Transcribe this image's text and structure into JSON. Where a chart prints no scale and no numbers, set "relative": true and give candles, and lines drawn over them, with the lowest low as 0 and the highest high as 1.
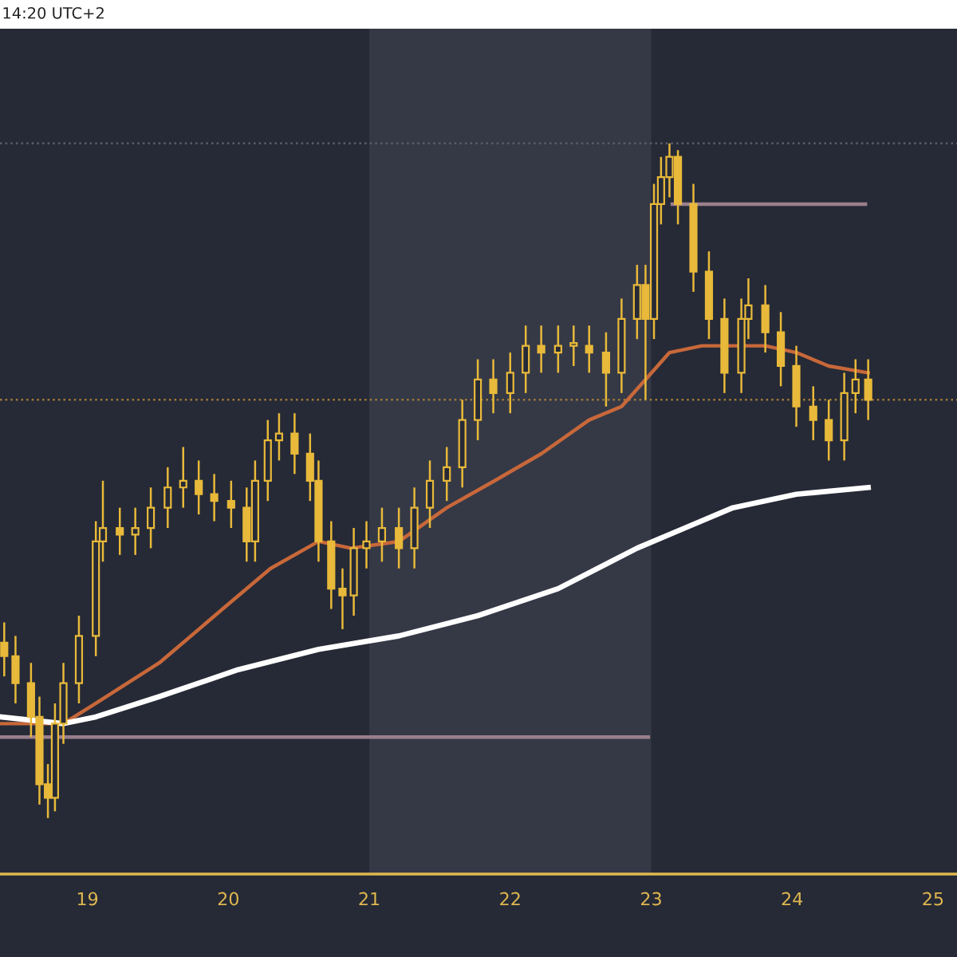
{
  "chart_data": {
    "type": "candlestick",
    "relative": true,
    "annotations": [
      "14:20 UTC+2"
    ],
    "xlim": [
      18.38,
      25.17
    ],
    "xticks": [
      19,
      20,
      21,
      22,
      23,
      24,
      25
    ],
    "grid": false,
    "legend": false,
    "bands": [
      {
        "axis": "x",
        "from": 21,
        "to": 23,
        "color": "#353946"
      }
    ],
    "ref_lines": [
      {
        "axis": "y",
        "value": 1.0,
        "color": "#5a5e6a",
        "line_style": "dotted"
      },
      {
        "axis": "y",
        "value": 0.62,
        "color": "#a07a3a",
        "line_style": "dotted"
      }
    ],
    "series": [
      {
        "color": "#e8b93a",
        "x": [
          18.41,
          18.49,
          18.6,
          18.66,
          18.72,
          18.77,
          18.83,
          18.94,
          19.06,
          19.11,
          19.23,
          19.34,
          19.45,
          19.57,
          19.68,
          19.79,
          19.9,
          20.02,
          20.13,
          20.19,
          20.28,
          20.36,
          20.47,
          20.58,
          20.64,
          20.73,
          20.81,
          20.89,
          20.98,
          21.09,
          21.21,
          21.32,
          21.43,
          21.55,
          21.66,
          21.77,
          21.88,
          22.0,
          22.11,
          22.22,
          22.34,
          22.45,
          22.56,
          22.68,
          22.79,
          22.9,
          22.96,
          23.02,
          23.07,
          23.13,
          23.19,
          23.3,
          23.41,
          23.52,
          23.64,
          23.69,
          23.81,
          23.92,
          24.03,
          24.15,
          24.26,
          24.37,
          24.45,
          24.54
        ],
        "ohlc": [
          [
            0.26,
            0.29,
            0.21,
            0.24
          ],
          [
            0.24,
            0.27,
            0.17,
            0.2
          ],
          [
            0.2,
            0.23,
            0.12,
            0.15
          ],
          [
            0.15,
            0.18,
            0.02,
            0.05
          ],
          [
            0.05,
            0.08,
            0.0,
            0.03
          ],
          [
            0.03,
            0.17,
            0.01,
            0.14
          ],
          [
            0.14,
            0.23,
            0.11,
            0.2
          ],
          [
            0.2,
            0.3,
            0.17,
            0.27
          ],
          [
            0.27,
            0.44,
            0.24,
            0.41
          ],
          [
            0.41,
            0.5,
            0.38,
            0.43
          ],
          [
            0.43,
            0.46,
            0.39,
            0.42
          ],
          [
            0.42,
            0.46,
            0.39,
            0.43
          ],
          [
            0.43,
            0.49,
            0.4,
            0.46
          ],
          [
            0.46,
            0.52,
            0.43,
            0.49
          ],
          [
            0.49,
            0.55,
            0.46,
            0.5
          ],
          [
            0.5,
            0.53,
            0.45,
            0.48
          ],
          [
            0.48,
            0.51,
            0.44,
            0.47
          ],
          [
            0.47,
            0.5,
            0.43,
            0.46
          ],
          [
            0.46,
            0.49,
            0.38,
            0.41
          ],
          [
            0.41,
            0.53,
            0.38,
            0.5
          ],
          [
            0.5,
            0.59,
            0.47,
            0.56
          ],
          [
            0.56,
            0.6,
            0.53,
            0.57
          ],
          [
            0.57,
            0.6,
            0.51,
            0.54
          ],
          [
            0.54,
            0.57,
            0.47,
            0.5
          ],
          [
            0.5,
            0.53,
            0.38,
            0.41
          ],
          [
            0.41,
            0.44,
            0.31,
            0.34
          ],
          [
            0.34,
            0.37,
            0.28,
            0.33
          ],
          [
            0.33,
            0.43,
            0.3,
            0.4
          ],
          [
            0.4,
            0.44,
            0.37,
            0.41
          ],
          [
            0.41,
            0.46,
            0.38,
            0.43
          ],
          [
            0.43,
            0.46,
            0.37,
            0.4
          ],
          [
            0.4,
            0.49,
            0.37,
            0.46
          ],
          [
            0.46,
            0.53,
            0.43,
            0.5
          ],
          [
            0.5,
            0.55,
            0.47,
            0.52
          ],
          [
            0.52,
            0.62,
            0.49,
            0.59
          ],
          [
            0.59,
            0.68,
            0.56,
            0.65
          ],
          [
            0.65,
            0.68,
            0.6,
            0.63
          ],
          [
            0.63,
            0.69,
            0.6,
            0.66
          ],
          [
            0.66,
            0.73,
            0.63,
            0.7
          ],
          [
            0.7,
            0.73,
            0.66,
            0.69
          ],
          [
            0.69,
            0.73,
            0.66,
            0.7
          ],
          [
            0.7,
            0.73,
            0.67,
            0.7
          ],
          [
            0.7,
            0.73,
            0.66,
            0.69
          ],
          [
            0.69,
            0.72,
            0.61,
            0.66
          ],
          [
            0.66,
            0.77,
            0.63,
            0.74
          ],
          [
            0.74,
            0.82,
            0.71,
            0.79
          ],
          [
            0.79,
            0.82,
            0.62,
            0.74
          ],
          [
            0.74,
            0.94,
            0.71,
            0.91
          ],
          [
            0.91,
            0.98,
            0.88,
            0.95
          ],
          [
            0.95,
            1.0,
            0.92,
            0.98
          ],
          [
            0.98,
            0.99,
            0.88,
            0.91
          ],
          [
            0.91,
            0.94,
            0.78,
            0.81
          ],
          [
            0.81,
            0.84,
            0.71,
            0.74
          ],
          [
            0.74,
            0.77,
            0.63,
            0.66
          ],
          [
            0.66,
            0.77,
            0.63,
            0.74
          ],
          [
            0.74,
            0.8,
            0.71,
            0.76
          ],
          [
            0.76,
            0.79,
            0.69,
            0.72
          ],
          [
            0.72,
            0.75,
            0.64,
            0.67
          ],
          [
            0.67,
            0.7,
            0.58,
            0.61
          ],
          [
            0.61,
            0.64,
            0.56,
            0.59
          ],
          [
            0.59,
            0.62,
            0.53,
            0.56
          ],
          [
            0.56,
            0.66,
            0.53,
            0.63
          ],
          [
            0.63,
            0.68,
            0.6,
            0.65
          ],
          [
            0.65,
            0.68,
            0.59,
            0.62
          ]
        ]
      },
      {
        "type": "line",
        "color": "#c8683a",
        "x": [
          18.38,
          18.83,
          19.06,
          19.51,
          19.96,
          20.3,
          20.64,
          20.87,
          21.21,
          21.55,
          21.89,
          22.22,
          22.56,
          22.79,
          22.96,
          23.13,
          23.36,
          23.58,
          23.81,
          24.03,
          24.26,
          24.54
        ],
        "values": [
          0.14,
          0.14,
          0.17,
          0.23,
          0.31,
          0.37,
          0.41,
          0.4,
          0.41,
          0.46,
          0.5,
          0.54,
          0.59,
          0.61,
          0.65,
          0.69,
          0.7,
          0.7,
          0.7,
          0.69,
          0.67,
          0.66
        ]
      },
      {
        "type": "line",
        "color": "#ffffff",
        "x": [
          18.38,
          18.83,
          19.06,
          19.51,
          20.07,
          20.64,
          21.21,
          21.77,
          22.34,
          22.9,
          23.24,
          23.58,
          24.03,
          24.54
        ],
        "values": [
          0.15,
          0.14,
          0.15,
          0.18,
          0.22,
          0.25,
          0.27,
          0.3,
          0.34,
          0.4,
          0.43,
          0.46,
          0.48,
          0.49
        ]
      },
      {
        "type": "line",
        "color": "#9a7f8c",
        "x": [
          23.15,
          24.52
        ],
        "values": [
          0.91,
          0.91
        ]
      },
      {
        "type": "line",
        "color": "#9a7f8c",
        "x": [
          18.38,
          22.98
        ],
        "values": [
          0.12,
          0.12
        ]
      }
    ]
  }
}
